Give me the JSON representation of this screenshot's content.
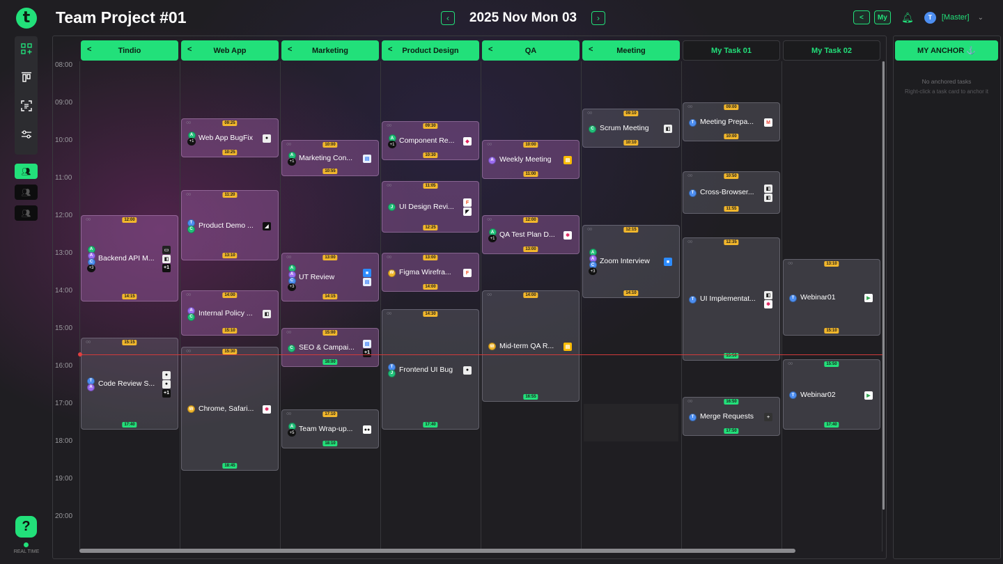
{
  "header": {
    "logo_letter": "t",
    "title": "Team Project #01",
    "date": "2025 Nov Mon 03",
    "prev_icon": "chevron-left-icon",
    "next_icon": "chevron-right-icon",
    "my_label": "My",
    "user_initial": "T",
    "user_role": "[Master]"
  },
  "sidebar": {
    "rail_icons": [
      "apps-icon",
      "align-top-icon",
      "scan-text-icon",
      "sliders-icon"
    ],
    "team_buttons": [
      "team-icon-active",
      "team-icon",
      "team-icon"
    ],
    "help_label": "?",
    "realtime_label": "REAL TIME"
  },
  "hours": [
    "08:00",
    "09:00",
    "10:00",
    "11:00",
    "12:00",
    "13:00",
    "14:00",
    "15:00",
    "16:00",
    "17:00",
    "18:00",
    "19:00",
    "20:00"
  ],
  "columns": [
    {
      "label": "Tindio",
      "kind": "team"
    },
    {
      "label": "Web App",
      "kind": "team"
    },
    {
      "label": "Marketing",
      "kind": "team"
    },
    {
      "label": "Product Design",
      "kind": "team"
    },
    {
      "label": "QA",
      "kind": "team"
    },
    {
      "label": "Meeting",
      "kind": "team"
    },
    {
      "label": "My Task 01",
      "kind": "mine"
    },
    {
      "label": "My Task 02",
      "kind": "mine"
    }
  ],
  "anchor": {
    "title": "MY ANCHOR ⚓",
    "empty": "No anchored tasks",
    "hint": "Right-click a task card to anchor it"
  },
  "colors": {
    "accent": "#22e07a",
    "time_badge": "#f2b72c",
    "now_line": "#d23b3b"
  },
  "tasks": [
    {
      "col": 0,
      "title": "Backend API M...",
      "start": "12:00",
      "end": "14:15",
      "tint": "purple",
      "end_green": false,
      "avatars": [
        {
          "l": "A",
          "c": "#22c07a"
        },
        {
          "l": "A",
          "c": "#9b6cf0"
        },
        {
          "l": "C",
          "c": "#4d8ef0"
        }
      ],
      "more": "+3",
      "apps": [
        {
          "g": "▭",
          "bg": "#222",
          "fg": "#ddd"
        },
        {
          "g": "◧",
          "bg": "#eee",
          "fg": "#222"
        }
      ],
      "apps_more": "+1"
    },
    {
      "col": 0,
      "title": "Code Review S...",
      "start": "15:15",
      "end": "17:40",
      "tint": "gray",
      "end_green": true,
      "avatars": [
        {
          "l": "T",
          "c": "#4d8ef0"
        },
        {
          "l": "A",
          "c": "#9b6cf0"
        }
      ],
      "more": "",
      "apps": [
        {
          "g": "●",
          "bg": "#eee",
          "fg": "#111"
        },
        {
          "g": "●",
          "bg": "#eee",
          "fg": "#111"
        }
      ],
      "apps_more": "+1"
    },
    {
      "col": 1,
      "title": "Web App BugFix",
      "start": "09:25",
      "end": "10:25",
      "tint": "purple",
      "end_green": false,
      "avatars": [
        {
          "l": "A",
          "c": "#22c07a"
        }
      ],
      "more": "+1",
      "apps": [
        {
          "g": "●",
          "bg": "#eee",
          "fg": "#111"
        }
      ],
      "apps_more": ""
    },
    {
      "col": 1,
      "title": "Product Demo ...",
      "start": "11:20",
      "end": "13:10",
      "tint": "purple",
      "end_green": false,
      "avatars": [
        {
          "l": "T",
          "c": "#4d8ef0"
        },
        {
          "l": "C",
          "c": "#22c07a"
        }
      ],
      "more": "",
      "apps": [
        {
          "g": "◢",
          "bg": "#111",
          "fg": "#fff"
        }
      ],
      "apps_more": ""
    },
    {
      "col": 1,
      "title": "Internal Policy ...",
      "start": "14:00",
      "end": "15:10",
      "tint": "purple",
      "end_green": false,
      "avatars": [
        {
          "l": "A",
          "c": "#9b6cf0"
        },
        {
          "l": "C",
          "c": "#22c07a"
        }
      ],
      "more": "",
      "apps": [
        {
          "g": "◧",
          "bg": "#eee",
          "fg": "#222"
        }
      ],
      "apps_more": ""
    },
    {
      "col": 1,
      "title": "Chrome, Safari...",
      "start": "15:30",
      "end": "18:45",
      "tint": "gray",
      "end_green": true,
      "avatars": [
        {
          "l": "W",
          "c": "#f2b72c"
        }
      ],
      "more": "",
      "apps": [
        {
          "g": "✱",
          "bg": "#fff",
          "fg": "#e0245e"
        }
      ],
      "apps_more": ""
    },
    {
      "col": 2,
      "title": "Marketing Con...",
      "start": "10:00",
      "end": "10:55",
      "tint": "purple",
      "end_green": false,
      "avatars": [
        {
          "l": "A",
          "c": "#22c07a"
        }
      ],
      "more": "+1",
      "apps": [
        {
          "g": "▤",
          "bg": "#e8f0fe",
          "fg": "#4285f4"
        }
      ],
      "apps_more": ""
    },
    {
      "col": 2,
      "title": "UT Review",
      "start": "13:00",
      "end": "14:15",
      "tint": "purple",
      "end_green": false,
      "avatars": [
        {
          "l": "A",
          "c": "#22c07a"
        },
        {
          "l": "A",
          "c": "#9b6cf0"
        },
        {
          "l": "C",
          "c": "#4d8ef0"
        }
      ],
      "more": "+3",
      "apps": [
        {
          "g": "■",
          "bg": "#2d8cff",
          "fg": "#fff"
        },
        {
          "g": "▤",
          "bg": "#e8f0fe",
          "fg": "#4285f4"
        }
      ],
      "apps_more": ""
    },
    {
      "col": 2,
      "title": "SEO & Campai...",
      "start": "15:00",
      "end": "16:00",
      "tint": "purple",
      "end_green": true,
      "avatars": [
        {
          "l": "C",
          "c": "#22c07a"
        }
      ],
      "more": "",
      "apps": [
        {
          "g": "▤",
          "bg": "#e8f0fe",
          "fg": "#4285f4"
        }
      ],
      "apps_more": "+1"
    },
    {
      "col": 2,
      "title": "Team Wrap-up...",
      "start": "17:10",
      "end": "18:10",
      "tint": "gray",
      "end_green": true,
      "avatars": [
        {
          "l": "A",
          "c": "#22c07a"
        }
      ],
      "more": "+5",
      "apps": [
        {
          "g": "●●",
          "bg": "#fff",
          "fg": "#111"
        }
      ],
      "apps_more": ""
    },
    {
      "col": 3,
      "title": "Component Re...",
      "start": "09:30",
      "end": "10:30",
      "tint": "purple",
      "end_green": false,
      "avatars": [
        {
          "l": "A",
          "c": "#22c07a"
        }
      ],
      "more": "+1",
      "apps": [
        {
          "g": "◆",
          "bg": "#fff",
          "fg": "#e0245e"
        }
      ],
      "apps_more": ""
    },
    {
      "col": 3,
      "title": "UI Design Revi...",
      "start": "11:05",
      "end": "12:25",
      "tint": "purple",
      "end_green": false,
      "avatars": [
        {
          "l": "J",
          "c": "#22c07a"
        }
      ],
      "more": "",
      "apps": [
        {
          "g": "F",
          "bg": "#fff",
          "fg": "#f24e1e"
        },
        {
          "g": "◤",
          "bg": "#fff",
          "fg": "#111"
        }
      ],
      "apps_more": ""
    },
    {
      "col": 3,
      "title": "Figma Wirefra...",
      "start": "13:00",
      "end": "14:00",
      "tint": "purple",
      "end_green": false,
      "avatars": [
        {
          "l": "W",
          "c": "#f2b72c"
        }
      ],
      "more": "",
      "apps": [
        {
          "g": "F",
          "bg": "#fff",
          "fg": "#f24e1e"
        }
      ],
      "apps_more": ""
    },
    {
      "col": 3,
      "title": "Frontend UI Bug",
      "start": "14:30",
      "end": "17:40",
      "tint": "gray",
      "end_green": true,
      "avatars": [
        {
          "l": "T",
          "c": "#4d8ef0"
        },
        {
          "l": "J",
          "c": "#22c07a"
        }
      ],
      "more": "",
      "apps": [
        {
          "g": "●",
          "bg": "#eee",
          "fg": "#111"
        }
      ],
      "apps_more": ""
    },
    {
      "col": 4,
      "title": "Weekly Meeting",
      "start": "10:00",
      "end": "11:00",
      "tint": "purple",
      "end_green": false,
      "avatars": [
        {
          "l": "A",
          "c": "#9b6cf0"
        }
      ],
      "more": "",
      "apps": [
        {
          "g": "▤",
          "bg": "#fbbc04",
          "fg": "#fff"
        }
      ],
      "apps_more": ""
    },
    {
      "col": 4,
      "title": "QA Test Plan D...",
      "start": "12:00",
      "end": "13:00",
      "tint": "purple",
      "end_green": false,
      "avatars": [
        {
          "l": "A",
          "c": "#22c07a"
        }
      ],
      "more": "+1",
      "apps": [
        {
          "g": "✱",
          "bg": "#fff",
          "fg": "#e0245e"
        }
      ],
      "apps_more": ""
    },
    {
      "col": 4,
      "title": "Mid-term QA R...",
      "start": "14:00",
      "end": "16:55",
      "tint": "gray",
      "end_green": true,
      "avatars": [
        {
          "l": "W",
          "c": "#f2b72c"
        }
      ],
      "more": "",
      "apps": [
        {
          "g": "▤",
          "bg": "#fbbc04",
          "fg": "#fff"
        }
      ],
      "apps_more": ""
    },
    {
      "col": 5,
      "title": "Scrum Meeting",
      "start": "09:10",
      "end": "10:10",
      "tint": "gray",
      "end_green": false,
      "avatars": [
        {
          "l": "C",
          "c": "#22c07a"
        }
      ],
      "more": "",
      "apps": [
        {
          "g": "◧",
          "bg": "#eee",
          "fg": "#222"
        }
      ],
      "apps_more": ""
    },
    {
      "col": 5,
      "title": "Zoom Interview",
      "start": "12:15",
      "end": "14:10",
      "tint": "gray",
      "end_green": false,
      "avatars": [
        {
          "l": "A",
          "c": "#22c07a"
        },
        {
          "l": "A",
          "c": "#9b6cf0"
        },
        {
          "l": "C",
          "c": "#4d8ef0"
        }
      ],
      "more": "+3",
      "apps": [
        {
          "g": "■",
          "bg": "#2d8cff",
          "fg": "#fff"
        }
      ],
      "apps_more": ""
    },
    {
      "col": 6,
      "title": "Meeting Prepa...",
      "start": "09:00",
      "end": "10:00",
      "tint": "gray",
      "end_green": false,
      "avatars": [
        {
          "l": "T",
          "c": "#4d8ef0"
        }
      ],
      "more": "",
      "apps": [
        {
          "g": "M",
          "bg": "#fff",
          "fg": "#ea4335"
        }
      ],
      "apps_more": ""
    },
    {
      "col": 6,
      "title": "Cross-Browser...",
      "start": "10:50",
      "end": "11:55",
      "tint": "gray",
      "end_green": false,
      "avatars": [
        {
          "l": "T",
          "c": "#4d8ef0"
        }
      ],
      "more": "",
      "apps": [
        {
          "g": "◧",
          "bg": "#eee",
          "fg": "#222"
        },
        {
          "g": "◧",
          "bg": "#eee",
          "fg": "#222"
        }
      ],
      "apps_more": ""
    },
    {
      "col": 6,
      "title": "UI Implementat...",
      "start": "12:35",
      "end": "15:50",
      "tint": "gray",
      "end_green": true,
      "avatars": [
        {
          "l": "T",
          "c": "#4d8ef0"
        }
      ],
      "more": "",
      "apps": [
        {
          "g": "◧",
          "bg": "#eee",
          "fg": "#222"
        },
        {
          "g": "✱",
          "bg": "#fff",
          "fg": "#e0245e"
        }
      ],
      "apps_more": ""
    },
    {
      "col": 6,
      "title": "Merge Requests",
      "start": "16:50",
      "end": "17:50",
      "tint": "gray",
      "end_green": true,
      "start_green": true,
      "avatars": [
        {
          "l": "T",
          "c": "#4d8ef0"
        }
      ],
      "more": "",
      "apps": [
        {
          "g": "+",
          "bg": "#333",
          "fg": "#ddd"
        }
      ],
      "apps_more": ""
    },
    {
      "col": 7,
      "title": "Webinar01",
      "start": "13:10",
      "end": "15:10",
      "tint": "gray",
      "end_green": false,
      "avatars": [
        {
          "l": "T",
          "c": "#4d8ef0"
        }
      ],
      "more": "",
      "apps": [
        {
          "g": "▶",
          "bg": "#fff",
          "fg": "#34a853"
        }
      ],
      "apps_more": ""
    },
    {
      "col": 7,
      "title": "Webinar02",
      "start": "15:50",
      "end": "17:40",
      "tint": "gray",
      "end_green": true,
      "start_green": true,
      "avatars": [
        {
          "l": "T",
          "c": "#4d8ef0"
        }
      ],
      "more": "",
      "apps": [
        {
          "g": "▶",
          "bg": "#fff",
          "fg": "#34a853"
        }
      ],
      "apps_more": ""
    }
  ]
}
